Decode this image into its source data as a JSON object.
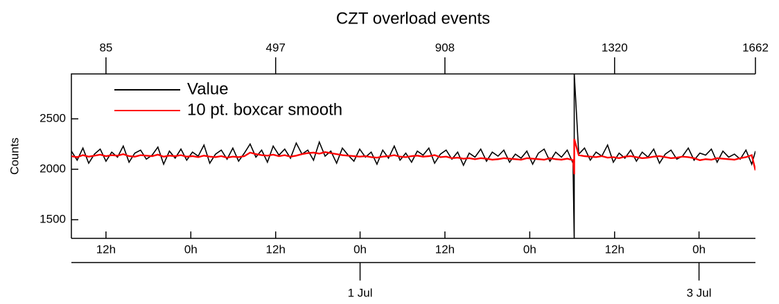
{
  "chart_data": {
    "type": "line",
    "title": "CZT overload events",
    "ylabel": "Counts",
    "legend": "upper left",
    "xlim": [
      1,
      1662
    ],
    "xticks": [
      85,
      497,
      908,
      1320,
      1662
    ],
    "time_ticks": [
      {
        "value": 85,
        "label": "12h"
      },
      {
        "value": 291,
        "label": "0h"
      },
      {
        "value": 497,
        "label": "12h"
      },
      {
        "value": 702,
        "label": "0h"
      },
      {
        "value": 908,
        "label": "12h"
      },
      {
        "value": 1114,
        "label": "0h"
      },
      {
        "value": 1320,
        "label": "12h"
      },
      {
        "value": 1525,
        "label": "0h"
      }
    ],
    "date_ticks": [
      {
        "value": 702,
        "label": "1 Jul"
      },
      {
        "value": 1525,
        "label": "3 Jul"
      }
    ],
    "ylim": [
      1315,
      2945
    ],
    "yticks": [
      1500,
      2000,
      2500
    ],
    "x": [
      1,
      15,
      29,
      43,
      57,
      71,
      85,
      99,
      113,
      127,
      141,
      155,
      169,
      183,
      197,
      211,
      225,
      239,
      253,
      267,
      281,
      295,
      309,
      323,
      337,
      351,
      365,
      379,
      393,
      407,
      421,
      435,
      449,
      463,
      477,
      491,
      505,
      519,
      533,
      547,
      561,
      575,
      589,
      603,
      617,
      631,
      645,
      659,
      673,
      687,
      701,
      715,
      729,
      743,
      757,
      771,
      785,
      799,
      813,
      827,
      841,
      855,
      869,
      883,
      897,
      911,
      925,
      939,
      953,
      967,
      981,
      995,
      1009,
      1023,
      1037,
      1051,
      1065,
      1079,
      1093,
      1107,
      1121,
      1135,
      1149,
      1163,
      1177,
      1191,
      1205,
      1219,
      1222,
      1222,
      1233,
      1247,
      1261,
      1275,
      1289,
      1303,
      1317,
      1331,
      1345,
      1359,
      1373,
      1387,
      1401,
      1415,
      1429,
      1443,
      1457,
      1471,
      1485,
      1499,
      1513,
      1527,
      1541,
      1555,
      1569,
      1583,
      1597,
      1611,
      1625,
      1639,
      1653,
      1662
    ],
    "series": [
      {
        "name": "Value",
        "color": "#000000",
        "values": [
          2180,
          2090,
          2210,
          2060,
          2150,
          2200,
          2080,
          2170,
          2120,
          2230,
          2070,
          2160,
          2190,
          2100,
          2140,
          2220,
          2050,
          2180,
          2110,
          2200,
          2090,
          2170,
          2130,
          2240,
          2060,
          2150,
          2190,
          2100,
          2210,
          2080,
          2160,
          2250,
          2120,
          2190,
          2070,
          2230,
          2140,
          2200,
          2110,
          2260,
          2150,
          2190,
          2090,
          2270,
          2130,
          2180,
          2060,
          2210,
          2140,
          2080,
          2200,
          2120,
          2170,
          2050,
          2190,
          2110,
          2230,
          2090,
          2160,
          2070,
          2180,
          2140,
          2210,
          2060,
          2150,
          2190,
          2100,
          2170,
          2040,
          2160,
          2120,
          2200,
          2080,
          2170,
          2130,
          2190,
          2070,
          2150,
          2110,
          2180,
          2050,
          2160,
          2200,
          2080,
          2170,
          2120,
          2190,
          2060,
          1300,
          2950,
          2150,
          2210,
          2090,
          2170,
          2130,
          2240,
          2070,
          2160,
          2110,
          2190,
          2080,
          2170,
          2120,
          2200,
          2060,
          2150,
          2190,
          2100,
          2130,
          2210,
          2090,
          2160,
          2140,
          2200,
          2070,
          2180,
          2120,
          2150,
          2100,
          2190,
          2050,
          2180
        ]
      },
      {
        "name": "10 pt. boxcar smooth",
        "color": "#ff0000",
        "values": [
          2130,
          2120,
          2140,
          2125,
          2135,
          2145,
          2130,
          2140,
          2135,
          2150,
          2130,
          2125,
          2140,
          2135,
          2130,
          2145,
          2125,
          2135,
          2130,
          2140,
          2125,
          2130,
          2120,
          2135,
          2125,
          2120,
          2130,
          2115,
          2125,
          2120,
          2130,
          2165,
          2150,
          2140,
          2135,
          2145,
          2130,
          2140,
          2125,
          2135,
          2150,
          2160,
          2165,
          2155,
          2170,
          2160,
          2150,
          2140,
          2135,
          2130,
          2125,
          2130,
          2120,
          2115,
          2125,
          2130,
          2140,
          2125,
          2120,
          2130,
          2135,
          2125,
          2130,
          2140,
          2120,
          2125,
          2110,
          2115,
          2105,
          2110,
          2100,
          2110,
          2105,
          2095,
          2100,
          2110,
          2105,
          2100,
          2095,
          2110,
          2105,
          2100,
          2095,
          2110,
          2100,
          2095,
          2105,
          2090,
          1950,
          2300,
          2140,
          2130,
          2125,
          2120,
          2130,
          2115,
          2120,
          2110,
          2125,
          2130,
          2120,
          2110,
          2115,
          2125,
          2130,
          2120,
          2110,
          2115,
          2125,
          2120,
          2110,
          2090,
          2100,
          2095,
          2110,
          2105,
          2100,
          2095,
          2110,
          2120,
          2140,
          1990
        ]
      }
    ]
  }
}
